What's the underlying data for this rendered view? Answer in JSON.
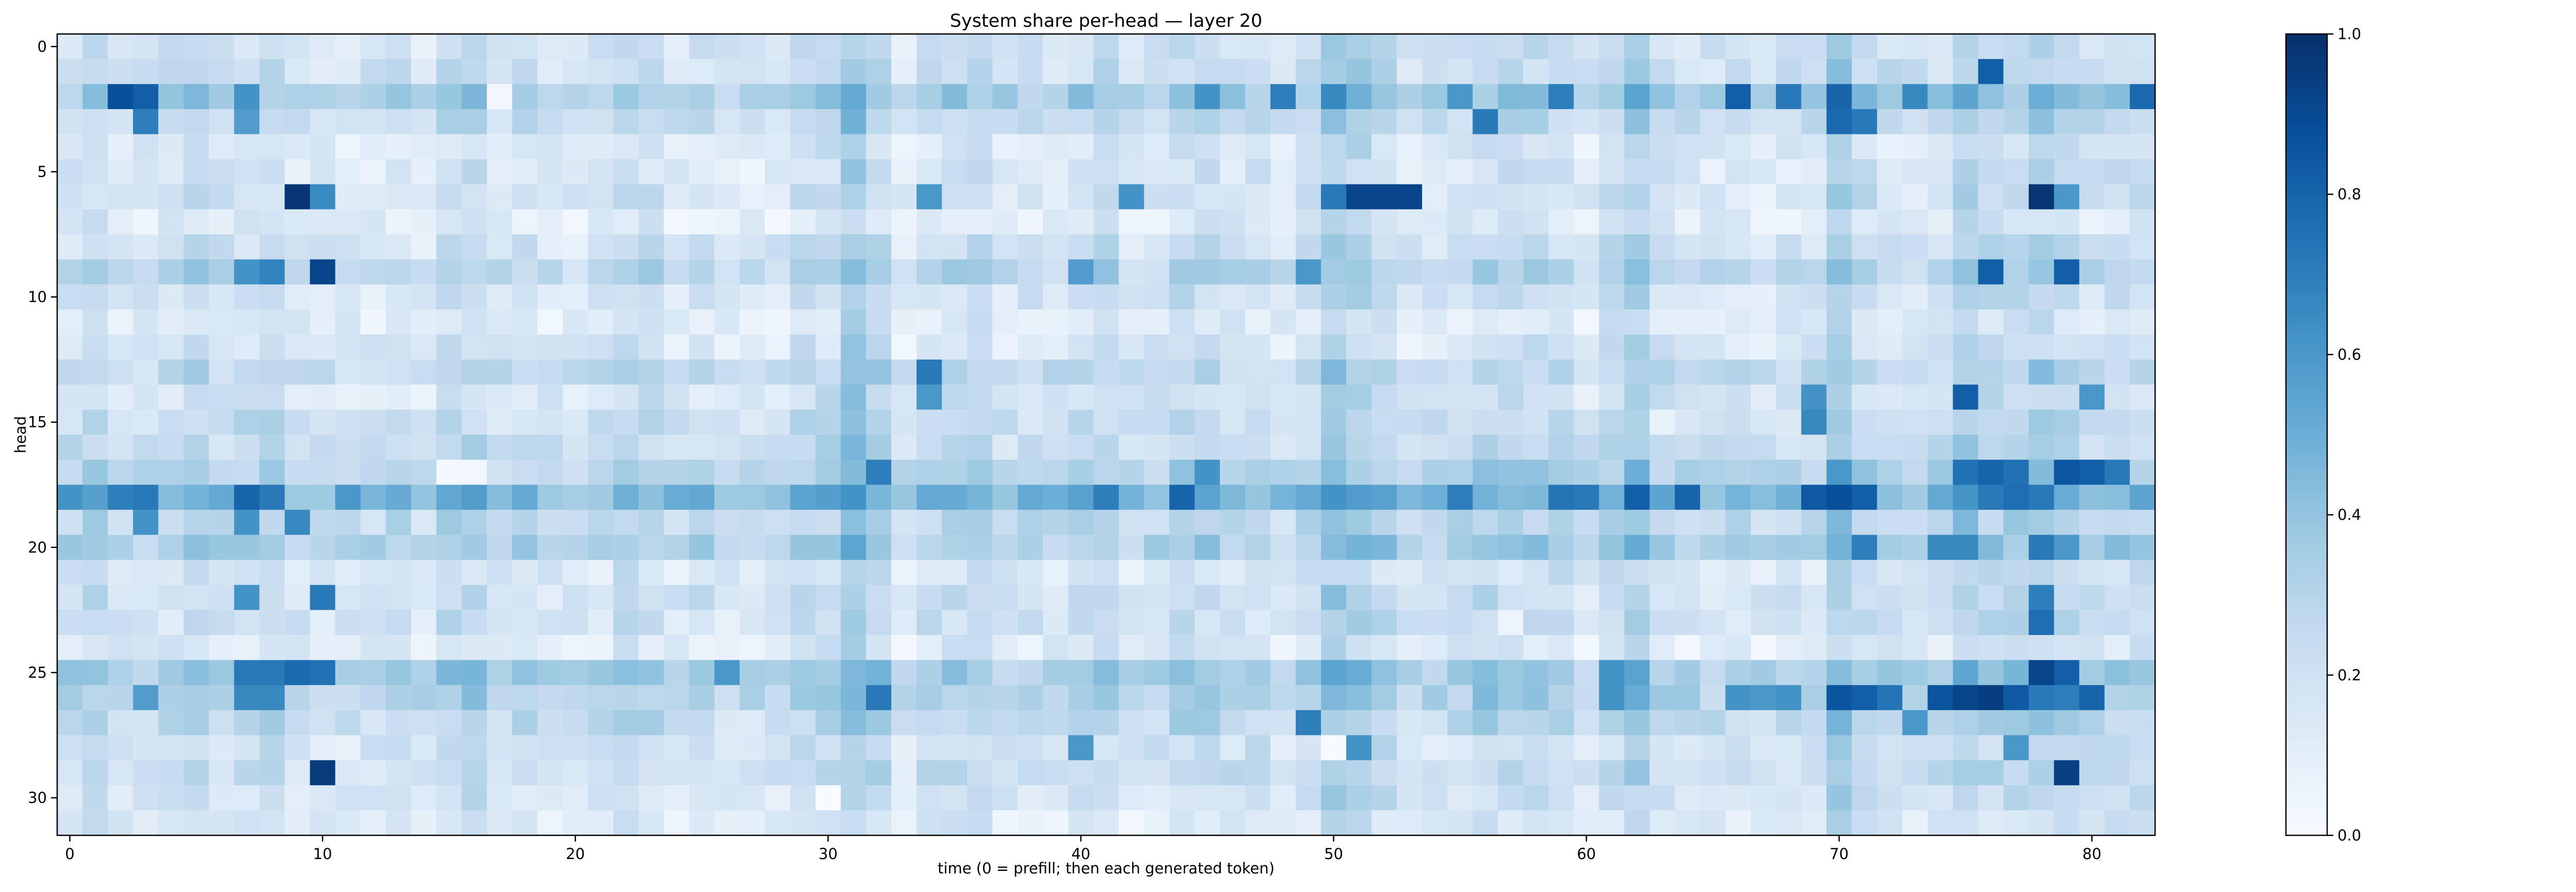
{
  "chart_data": {
    "type": "heatmap",
    "title": "System share per-head — layer 20",
    "xlabel": "time (0 = prefill; then each generated token)",
    "ylabel": "head",
    "n_rows": 32,
    "n_cols": 83,
    "x_ticks": [
      0,
      10,
      20,
      30,
      40,
      50,
      60,
      70,
      80
    ],
    "y_ticks": [
      0,
      5,
      10,
      15,
      20,
      25,
      30
    ],
    "colormap": "Blues",
    "colorbar": {
      "min": 0.0,
      "max": 1.0,
      "ticks": [
        "0.0",
        "0.2",
        "0.4",
        "0.6",
        "0.8",
        "1.0"
      ]
    },
    "grid": false,
    "legend": "none",
    "generator": {
      "seed": 20,
      "column_boost": [
        [
          31,
          0.15
        ],
        [
          32,
          0.1
        ],
        [
          50,
          0.18
        ],
        [
          51,
          0.1
        ],
        [
          61,
          0.08
        ],
        [
          62,
          0.1
        ],
        [
          70,
          0.12
        ],
        [
          71,
          0.1
        ],
        [
          75,
          0.12
        ],
        [
          76,
          0.1
        ],
        [
          77,
          0.12
        ],
        [
          78,
          0.15
        ],
        [
          79,
          0.1
        ]
      ],
      "row_base": [
        0.22,
        0.24,
        0.42,
        0.28,
        0.16,
        0.18,
        0.2,
        0.12,
        0.22,
        0.34,
        0.2,
        0.14,
        0.18,
        0.3,
        0.2,
        0.26,
        0.28,
        0.36,
        0.58,
        0.3,
        0.4,
        0.18,
        0.24,
        0.22,
        0.14,
        0.42,
        0.38,
        0.3,
        0.22,
        0.24,
        0.2,
        0.14
      ],
      "hot_cells": [
        [
          2,
          2,
          0.88
        ],
        [
          2,
          3,
          0.82
        ],
        [
          3,
          3,
          0.7
        ],
        [
          2,
          7,
          0.62
        ],
        [
          3,
          7,
          0.58
        ],
        [
          2,
          45,
          0.62
        ],
        [
          2,
          48,
          0.7
        ],
        [
          2,
          50,
          0.66
        ],
        [
          2,
          55,
          0.6
        ],
        [
          3,
          56,
          0.72
        ],
        [
          2,
          59,
          0.7
        ],
        [
          2,
          66,
          0.82
        ],
        [
          2,
          68,
          0.72
        ],
        [
          2,
          70,
          0.8
        ],
        [
          3,
          70,
          0.78
        ],
        [
          3,
          71,
          0.72
        ],
        [
          2,
          73,
          0.66
        ],
        [
          1,
          76,
          0.82
        ],
        [
          2,
          82,
          0.78
        ],
        [
          6,
          9,
          0.98
        ],
        [
          6,
          10,
          0.65
        ],
        [
          6,
          50,
          0.72
        ],
        [
          6,
          51,
          0.92
        ],
        [
          6,
          52,
          0.92
        ],
        [
          6,
          53,
          0.92
        ],
        [
          6,
          78,
          0.98
        ],
        [
          6,
          79,
          0.6
        ],
        [
          6,
          34,
          0.6
        ],
        [
          6,
          42,
          0.62
        ],
        [
          9,
          7,
          0.62
        ],
        [
          9,
          8,
          0.68
        ],
        [
          9,
          10,
          0.92
        ],
        [
          9,
          40,
          0.58
        ],
        [
          9,
          49,
          0.6
        ],
        [
          9,
          76,
          0.82
        ],
        [
          9,
          79,
          0.82
        ],
        [
          13,
          34,
          0.72
        ],
        [
          14,
          34,
          0.6
        ],
        [
          14,
          69,
          0.62
        ],
        [
          15,
          69,
          0.66
        ],
        [
          14,
          75,
          0.82
        ],
        [
          14,
          80,
          0.6
        ],
        [
          17,
          32,
          0.7
        ],
        [
          17,
          45,
          0.62
        ],
        [
          17,
          70,
          0.6
        ],
        [
          17,
          75,
          0.75
        ],
        [
          17,
          76,
          0.8
        ],
        [
          17,
          77,
          0.75
        ],
        [
          17,
          79,
          0.85
        ],
        [
          17,
          80,
          0.82
        ],
        [
          17,
          81,
          0.72
        ],
        [
          18,
          0,
          0.62
        ],
        [
          18,
          2,
          0.7
        ],
        [
          18,
          3,
          0.72
        ],
        [
          18,
          7,
          0.8
        ],
        [
          18,
          8,
          0.72
        ],
        [
          18,
          11,
          0.6
        ],
        [
          18,
          41,
          0.7
        ],
        [
          18,
          44,
          0.8
        ],
        [
          18,
          55,
          0.7
        ],
        [
          18,
          59,
          0.74
        ],
        [
          18,
          60,
          0.72
        ],
        [
          18,
          62,
          0.82
        ],
        [
          18,
          64,
          0.8
        ],
        [
          18,
          69,
          0.84
        ],
        [
          18,
          70,
          0.88
        ],
        [
          18,
          71,
          0.82
        ],
        [
          18,
          76,
          0.72
        ],
        [
          18,
          77,
          0.76
        ],
        [
          18,
          78,
          0.72
        ],
        [
          19,
          3,
          0.62
        ],
        [
          19,
          7,
          0.62
        ],
        [
          19,
          9,
          0.66
        ],
        [
          20,
          71,
          0.7
        ],
        [
          20,
          74,
          0.66
        ],
        [
          20,
          75,
          0.66
        ],
        [
          20,
          78,
          0.72
        ],
        [
          20,
          79,
          0.6
        ],
        [
          22,
          10,
          0.72
        ],
        [
          22,
          7,
          0.62
        ],
        [
          23,
          78,
          0.76
        ],
        [
          22,
          78,
          0.7
        ],
        [
          25,
          7,
          0.72
        ],
        [
          25,
          8,
          0.72
        ],
        [
          25,
          9,
          0.78
        ],
        [
          25,
          10,
          0.75
        ],
        [
          25,
          78,
          0.92
        ],
        [
          25,
          79,
          0.82
        ],
        [
          25,
          26,
          0.6
        ],
        [
          26,
          7,
          0.66
        ],
        [
          26,
          8,
          0.66
        ],
        [
          26,
          3,
          0.58
        ],
        [
          26,
          32,
          0.72
        ],
        [
          26,
          70,
          0.86
        ],
        [
          26,
          71,
          0.82
        ],
        [
          26,
          72,
          0.74
        ],
        [
          26,
          74,
          0.86
        ],
        [
          26,
          75,
          0.92
        ],
        [
          26,
          76,
          0.95
        ],
        [
          26,
          77,
          0.84
        ],
        [
          26,
          78,
          0.72
        ],
        [
          26,
          79,
          0.7
        ],
        [
          26,
          80,
          0.8
        ],
        [
          26,
          66,
          0.62
        ],
        [
          26,
          67,
          0.6
        ],
        [
          26,
          68,
          0.62
        ],
        [
          25,
          61,
          0.62
        ],
        [
          26,
          61,
          0.62
        ],
        [
          27,
          49,
          0.7
        ],
        [
          28,
          40,
          0.6
        ],
        [
          28,
          51,
          0.62
        ],
        [
          29,
          10,
          0.96
        ],
        [
          29,
          79,
          0.94
        ],
        [
          28,
          77,
          0.6
        ],
        [
          27,
          73,
          0.6
        ]
      ],
      "cold_cells": [
        [
          28,
          50,
          0.0
        ],
        [
          17,
          15,
          0.02
        ],
        [
          17,
          16,
          0.03
        ],
        [
          2,
          17,
          0.03
        ],
        [
          30,
          30,
          0.0
        ],
        [
          15,
          63,
          0.08
        ],
        [
          24,
          64,
          0.03
        ],
        [
          23,
          57,
          0.05
        ]
      ]
    }
  }
}
